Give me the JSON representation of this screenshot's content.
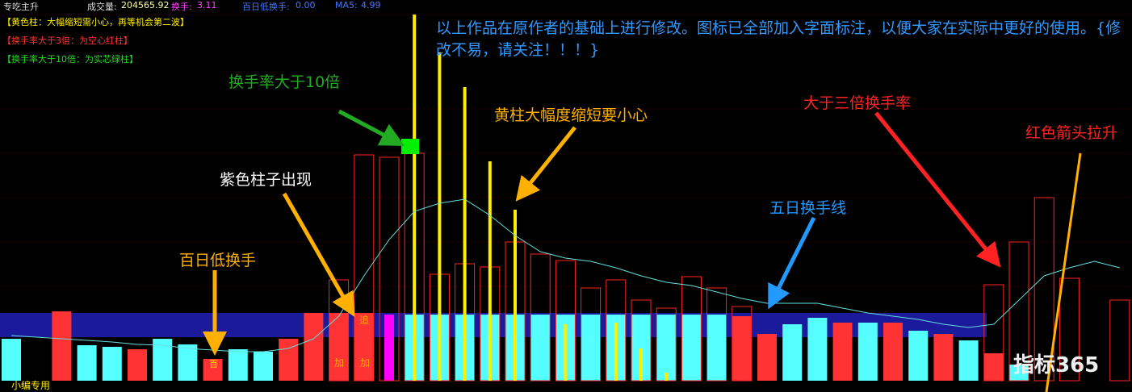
{
  "header": {
    "title": "专吃主升",
    "volume_label": "成交量:",
    "volume": "204565.92",
    "turnover_label": "换手:",
    "turnover": "3.11",
    "low_label": "百日低换手:",
    "low": "0.00",
    "ma_label": "MA5:",
    "ma": "4.99"
  },
  "notes": [
    "【黄色柱：大幅缩短需小心，再等机会第二波】",
    "【换手率大于3倍：为空心红柱】",
    "【换手率大于10倍：为实芯绿柱】"
  ],
  "description": "以上作品在原作者的基础上进行修改。图标已全部加入字面标注，以便大家在实际中更好的使用。{修改不易，请关注！！！}",
  "annotations": {
    "ten_times": "换手率大于10倍",
    "purple": "紫色柱子出现",
    "low_turnover": "百日低换手",
    "yellow_short": "黄柱大幅度缩短要小心",
    "ma_line": "五日换手线",
    "three_times": "大于三倍换手率",
    "red_arrow": "红色箭头拉升"
  },
  "markers": [
    "百",
    "加",
    "加",
    "追"
  ],
  "footer": "小编专用",
  "watermark": "指标365",
  "chart_data": {
    "type": "bar",
    "ylim": [
      0,
      472
    ],
    "solid": [
      52,
      null,
      86,
      44,
      42,
      39,
      52,
      45,
      27,
      39,
      36,
      52,
      84,
      84,
      84,
      82,
      82,
      82,
      82,
      82,
      82,
      82,
      82,
      82,
      82,
      82,
      82,
      82,
      82,
      80,
      58,
      70,
      78,
      72,
      72,
      72,
      62,
      58,
      50,
      34,
      20,
      null,
      null,
      null,
      null
    ],
    "solid_colors": [
      "#55ffff",
      null,
      "#ff3333",
      "#55ffff",
      "#55ffff",
      "#ff3333",
      "#55ffff",
      "#55ffff",
      "#ff3333",
      "#55ffff",
      "#55ffff",
      "#ff3333",
      "#ff3333",
      "#ff3333",
      "#ff3333",
      "#ff00ff",
      "#55ffff",
      "#55ffff",
      "#55ffff",
      "#55ffff",
      "#55ffff",
      "#55ffff",
      "#55ffff",
      "#55ffff",
      "#55ffff",
      "#55ffff",
      "#55ffff",
      "#55ffff",
      "#55ffff",
      "#ff3333",
      "#ff3333",
      "#55ffff",
      "#55ffff",
      "#ff3333",
      "#55ffff",
      "#ff3333",
      "#55ffff",
      "#ff3333",
      "#55ffff",
      "#ff3333",
      "#55ffff",
      null,
      null,
      null,
      null
    ],
    "hollow": [
      null,
      null,
      null,
      null,
      null,
      null,
      null,
      null,
      null,
      null,
      null,
      null,
      null,
      125,
      280,
      277,
      282,
      132,
      145,
      141,
      172,
      157,
      149,
      115,
      125,
      100,
      90,
      129,
      115,
      92,
      null,
      null,
      null,
      null,
      null,
      null,
      null,
      null,
      null,
      119,
      172,
      227,
      127,
      null,
      100
    ],
    "hollow_color": "#ff2222",
    "yellow": [
      null,
      null,
      null,
      null,
      null,
      null,
      null,
      null,
      null,
      null,
      null,
      null,
      null,
      null,
      null,
      null,
      454,
      407,
      364,
      272,
      212,
      null,
      70,
      null,
      72,
      40,
      10,
      null,
      null,
      null,
      null,
      null,
      null,
      null,
      null,
      null,
      null,
      null,
      null,
      null,
      null,
      null,
      null,
      null,
      null
    ],
    "yellow_color": "#ffee00",
    "ma5": [
      56,
      54,
      52,
      50,
      48,
      45,
      44,
      40,
      38,
      36,
      36,
      40,
      52,
      80,
      130,
      175,
      210,
      220,
      225,
      205,
      180,
      160,
      152,
      148,
      140,
      130,
      122,
      118,
      110,
      102,
      96,
      96,
      96,
      90,
      84,
      80,
      76,
      70,
      66,
      70,
      100,
      130,
      140,
      148,
      140
    ],
    "ma5_color": "#66dddd"
  }
}
